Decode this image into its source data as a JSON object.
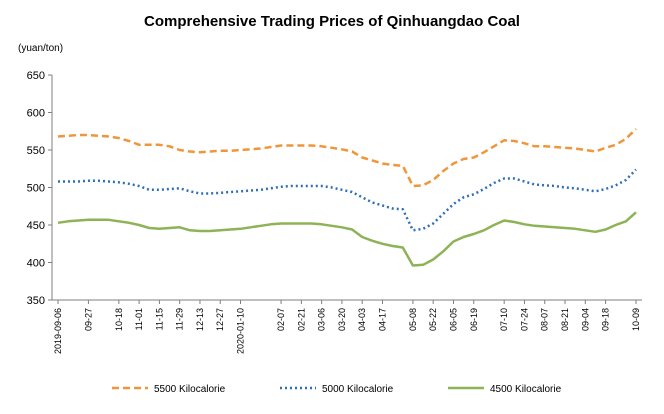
{
  "chart_data": {
    "type": "line",
    "title": "Comprehensive Trading Prices of Qinhuangdao Coal",
    "ylabel": "(yuan/ton)",
    "xlabel": "",
    "ylim": [
      350,
      650
    ],
    "yticks": [
      350,
      400,
      450,
      500,
      550,
      600,
      650
    ],
    "grid": false,
    "legend_position": "bottom",
    "x": [
      "2019-09-06",
      "09-13",
      "09-20",
      "09-27",
      "10-04",
      "10-11",
      "10-18",
      "10-25",
      "11-01",
      "11-08",
      "11-15",
      "11-22",
      "11-29",
      "12-06",
      "12-13",
      "12-20",
      "12-27",
      "2020-01-03",
      "2020-01-10",
      "01-17",
      "01-24",
      "01-31",
      "02-07",
      "02-14",
      "02-21",
      "02-28",
      "03-06",
      "03-13",
      "03-20",
      "03-27",
      "04-03",
      "04-10",
      "04-17",
      "04-24",
      "05-01",
      "05-08",
      "05-15",
      "05-22",
      "05-29",
      "06-05",
      "06-12",
      "06-19",
      "06-26",
      "07-03",
      "07-10",
      "07-17",
      "07-24",
      "07-31",
      "08-07",
      "08-14",
      "08-21",
      "08-28",
      "09-04",
      "09-11",
      "09-18",
      "09-25",
      "10-02",
      "10-09"
    ],
    "tick_labels": [
      "2019-09-06",
      "09-27",
      "10-18",
      "11-01",
      "11-15",
      "11-29",
      "12-13",
      "12-27",
      "2020-01-10",
      "02-07",
      "02-21",
      "03-06",
      "03-20",
      "04-03",
      "04-17",
      "05-08",
      "05-22",
      "06-05",
      "06-19",
      "07-10",
      "07-24",
      "08-07",
      "08-21",
      "09-04",
      "09-18",
      "10-09"
    ],
    "series": [
      {
        "name": "5500 Kilocalorie",
        "color": "#F0963A",
        "dash": "dashed",
        "values": [
          568,
          569,
          570,
          570,
          569,
          568,
          566,
          562,
          557,
          557,
          557,
          555,
          550,
          548,
          547,
          548,
          549,
          549,
          550,
          551,
          552,
          554,
          556,
          556,
          556,
          556,
          555,
          553,
          551,
          548,
          540,
          536,
          532,
          530,
          529,
          502,
          503,
          510,
          522,
          532,
          538,
          540,
          547,
          555,
          563,
          562,
          559,
          555,
          555,
          554,
          553,
          552,
          550,
          548,
          553,
          557,
          565,
          578
        ]
      },
      {
        "name": "5000 Kilocalorie",
        "color": "#2F6FB7",
        "dash": "dotted",
        "values": [
          508,
          508,
          508,
          509,
          509,
          508,
          507,
          505,
          502,
          497,
          497,
          498,
          499,
          495,
          492,
          492,
          493,
          494,
          495,
          496,
          497,
          499,
          501,
          502,
          502,
          502,
          502,
          500,
          497,
          494,
          487,
          480,
          476,
          472,
          471,
          443,
          445,
          452,
          465,
          478,
          487,
          491,
          498,
          506,
          512,
          512,
          508,
          504,
          503,
          502,
          500,
          499,
          497,
          495,
          498,
          503,
          510,
          524
        ]
      },
      {
        "name": "4500 Kilocalorie",
        "color": "#8DB356",
        "dash": "solid",
        "values": [
          453,
          455,
          456,
          457,
          457,
          457,
          455,
          453,
          450,
          446,
          445,
          446,
          447,
          443,
          442,
          442,
          443,
          444,
          445,
          447,
          449,
          451,
          452,
          452,
          452,
          452,
          451,
          449,
          447,
          444,
          434,
          429,
          425,
          422,
          420,
          396,
          397,
          404,
          415,
          428,
          434,
          438,
          443,
          450,
          456,
          454,
          451,
          449,
          448,
          447,
          446,
          445,
          443,
          441,
          444,
          450,
          455,
          467
        ]
      }
    ]
  }
}
